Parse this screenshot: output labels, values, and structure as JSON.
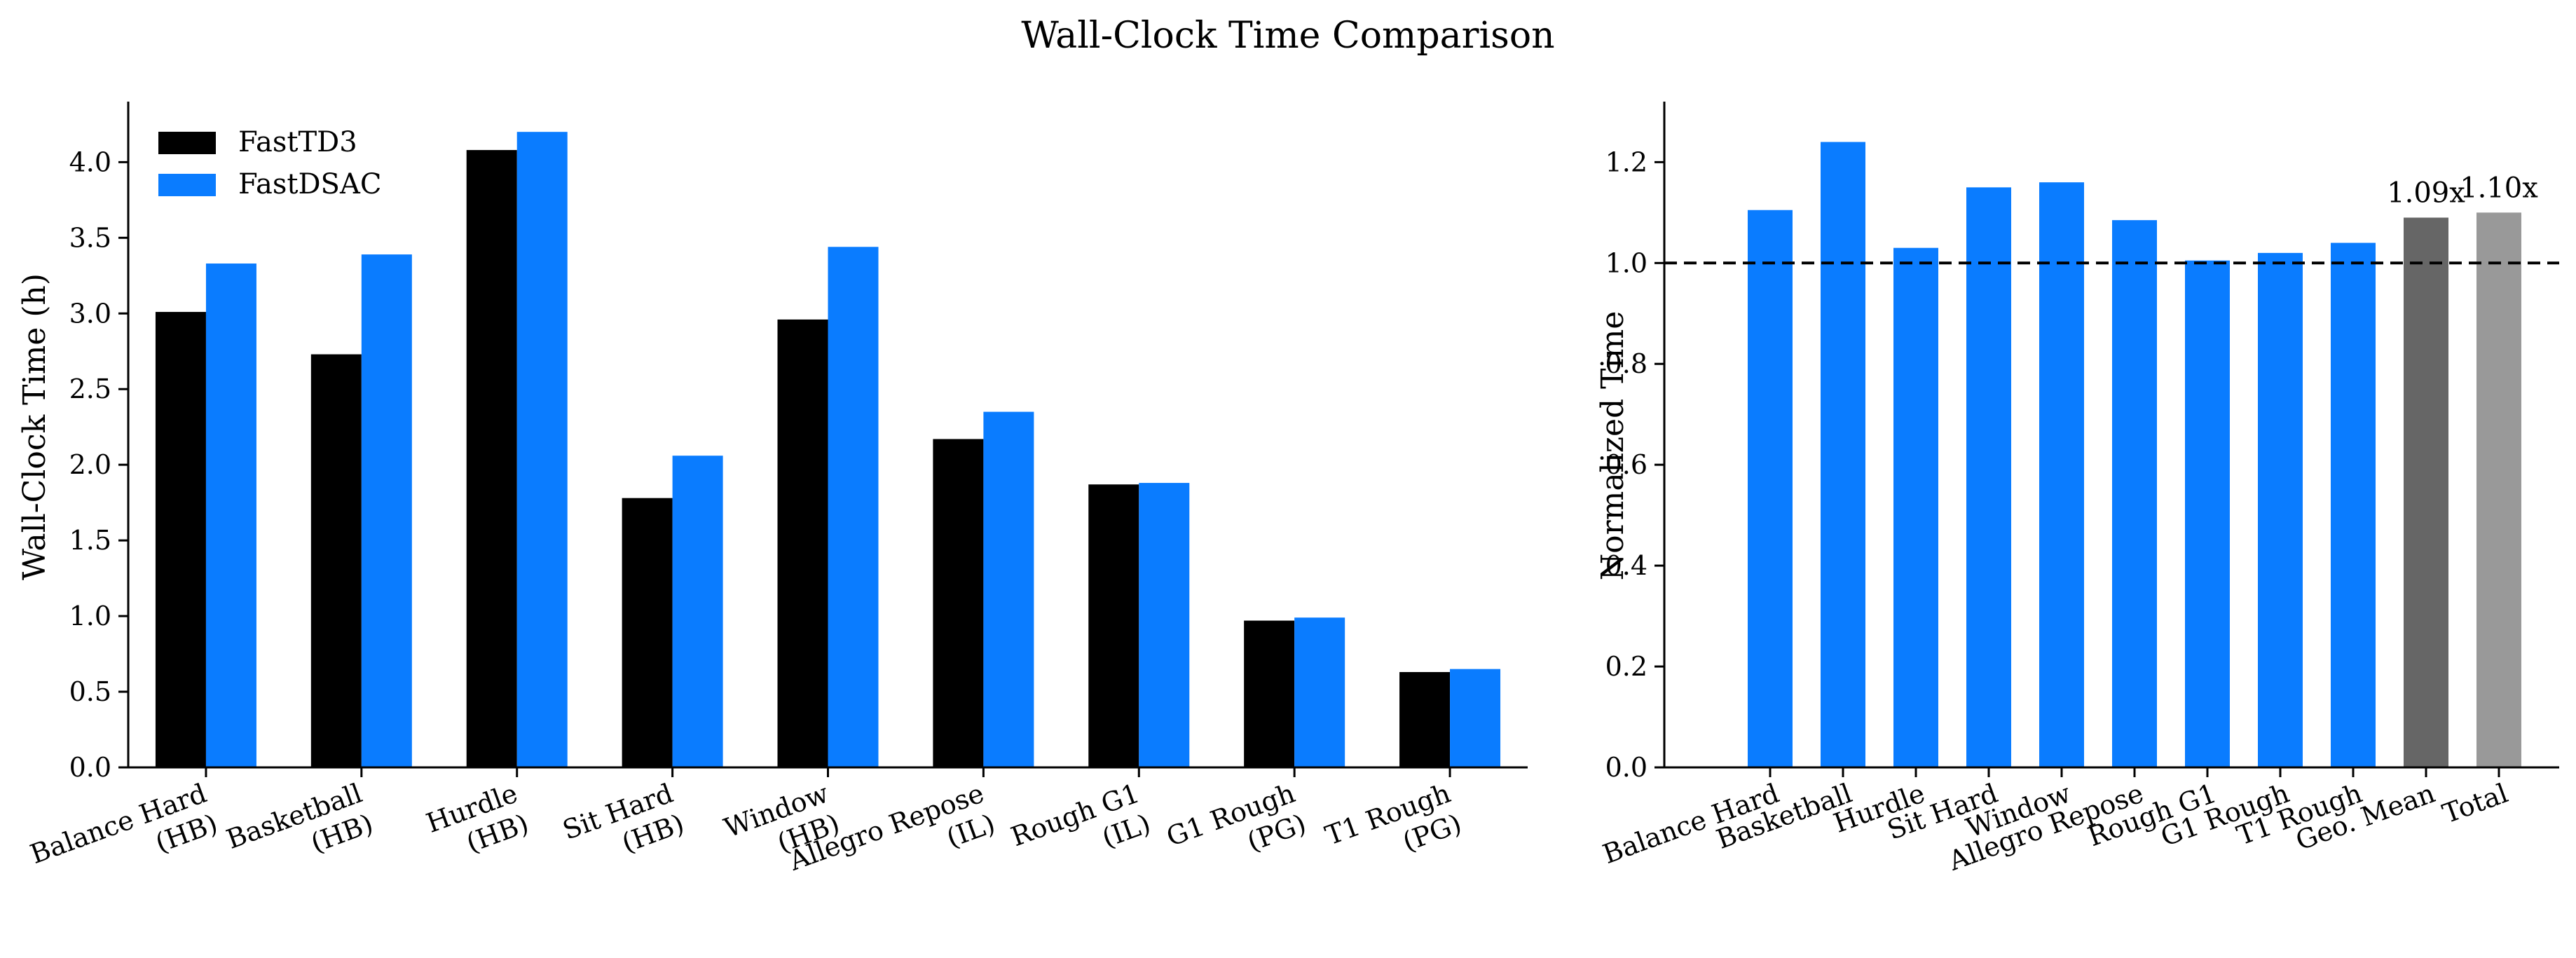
{
  "figure": {
    "title": "Wall-Clock Time Comparison"
  },
  "chart_data": [
    {
      "type": "bar",
      "ylabel": "Wall-Clock Time (h)",
      "ylim": [
        0,
        4.4
      ],
      "yticks": [
        "0.0",
        "0.5",
        "1.0",
        "1.5",
        "2.0",
        "2.5",
        "3.0",
        "3.5",
        "4.0"
      ],
      "legend_position": "top-left",
      "categories": [
        [
          "Balance Hard",
          "(HB)"
        ],
        [
          "Basketball",
          "(HB)"
        ],
        [
          "Hurdle",
          "(HB)"
        ],
        [
          "Sit Hard",
          "(HB)"
        ],
        [
          "Window",
          "(HB)"
        ],
        [
          "Allegro Repose",
          "(IL)"
        ],
        [
          "Rough G1",
          "(IL)"
        ],
        [
          "G1 Rough",
          "(PG)"
        ],
        [
          "T1 Rough",
          "(PG)"
        ]
      ],
      "series": [
        {
          "name": "FastTD3",
          "color": "#000000",
          "values": [
            3.01,
            2.73,
            4.08,
            1.78,
            2.96,
            2.17,
            1.87,
            0.97,
            0.63
          ]
        },
        {
          "name": "FastDSAC",
          "color": "#0a7cff",
          "values": [
            3.33,
            3.39,
            4.2,
            2.06,
            3.44,
            2.35,
            1.88,
            0.99,
            0.65
          ]
        }
      ]
    },
    {
      "type": "bar",
      "ylabel": "Normalized Time",
      "ylim": [
        0,
        1.32
      ],
      "yticks": [
        "0.0",
        "0.2",
        "0.4",
        "0.6",
        "0.8",
        "1.0",
        "1.2"
      ],
      "reference_line": 1.0,
      "categories": [
        "Balance Hard",
        "Basketball",
        "Hurdle",
        "Sit Hard",
        "Window",
        "Allegro Repose",
        "Rough G1",
        "G1 Rough",
        "T1 Rough",
        "Geo. Mean",
        "Total"
      ],
      "values": [
        1.105,
        1.24,
        1.03,
        1.15,
        1.16,
        1.085,
        1.005,
        1.02,
        1.04,
        1.09,
        1.1
      ],
      "colors": [
        "#0a7cff",
        "#0a7cff",
        "#0a7cff",
        "#0a7cff",
        "#0a7cff",
        "#0a7cff",
        "#0a7cff",
        "#0a7cff",
        "#0a7cff",
        "#666666",
        "#999999"
      ],
      "annotations": [
        {
          "index": 9,
          "text": "1.09x"
        },
        {
          "index": 10,
          "text": "1.10x"
        }
      ]
    }
  ]
}
